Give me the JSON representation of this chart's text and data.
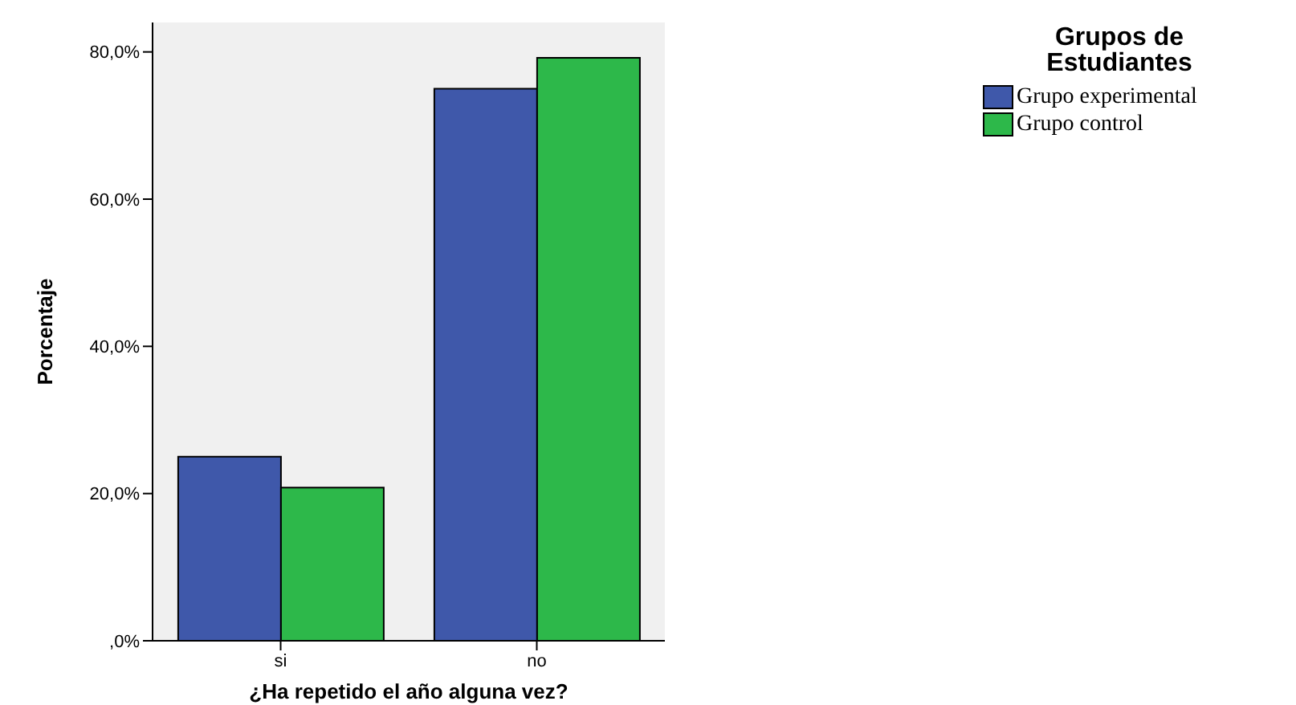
{
  "chart_data": {
    "type": "bar",
    "xlabel": "¿Ha repetido el año alguna vez?",
    "ylabel": "Porcentaje",
    "legend_title": "Grupos de Estudiantes",
    "legend": "top right",
    "categories": [
      "si",
      "no"
    ],
    "series": [
      {
        "name": "Grupo experimental",
        "color": "#3f58aa",
        "values": [
          25.0,
          75.0
        ]
      },
      {
        "name": "Grupo control",
        "color": "#2db84a",
        "values": [
          20.8,
          79.2
        ]
      }
    ],
    "ylim": [
      0,
      84
    ],
    "yticks": [
      {
        "value": 0,
        "label": ",0%"
      },
      {
        "value": 20,
        "label": "20,0%"
      },
      {
        "value": 40,
        "label": "40,0%"
      },
      {
        "value": 60,
        "label": "60,0%"
      },
      {
        "value": 80,
        "label": "80,0%"
      }
    ]
  }
}
